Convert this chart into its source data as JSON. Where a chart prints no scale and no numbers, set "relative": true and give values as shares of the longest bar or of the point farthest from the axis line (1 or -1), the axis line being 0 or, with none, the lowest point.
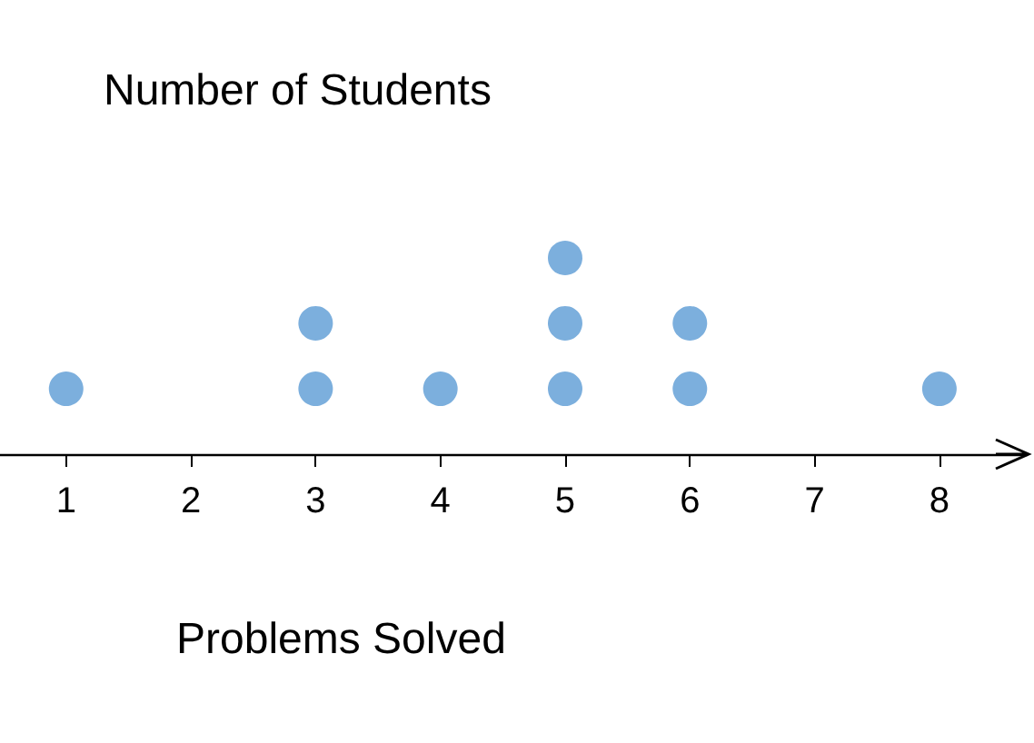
{
  "chart_data": {
    "type": "scatter",
    "title": "Number of Students",
    "xlabel": "Problems Solved",
    "relative": true,
    "x": [
      1,
      3,
      3,
      4,
      5,
      5,
      5,
      6,
      6,
      8
    ],
    "values": [
      0.333,
      0.333,
      0.667,
      0.333,
      0.333,
      0.667,
      1,
      0.333,
      0.667,
      0.333
    ],
    "color": "#5b9bd5",
    "marker": "circle",
    "grid": false,
    "tick_labels": "x",
    "xlim": [
      0.47,
      8.7
    ],
    "xticks": [
      1,
      2,
      3,
      4,
      5,
      6,
      7,
      8
    ]
  }
}
